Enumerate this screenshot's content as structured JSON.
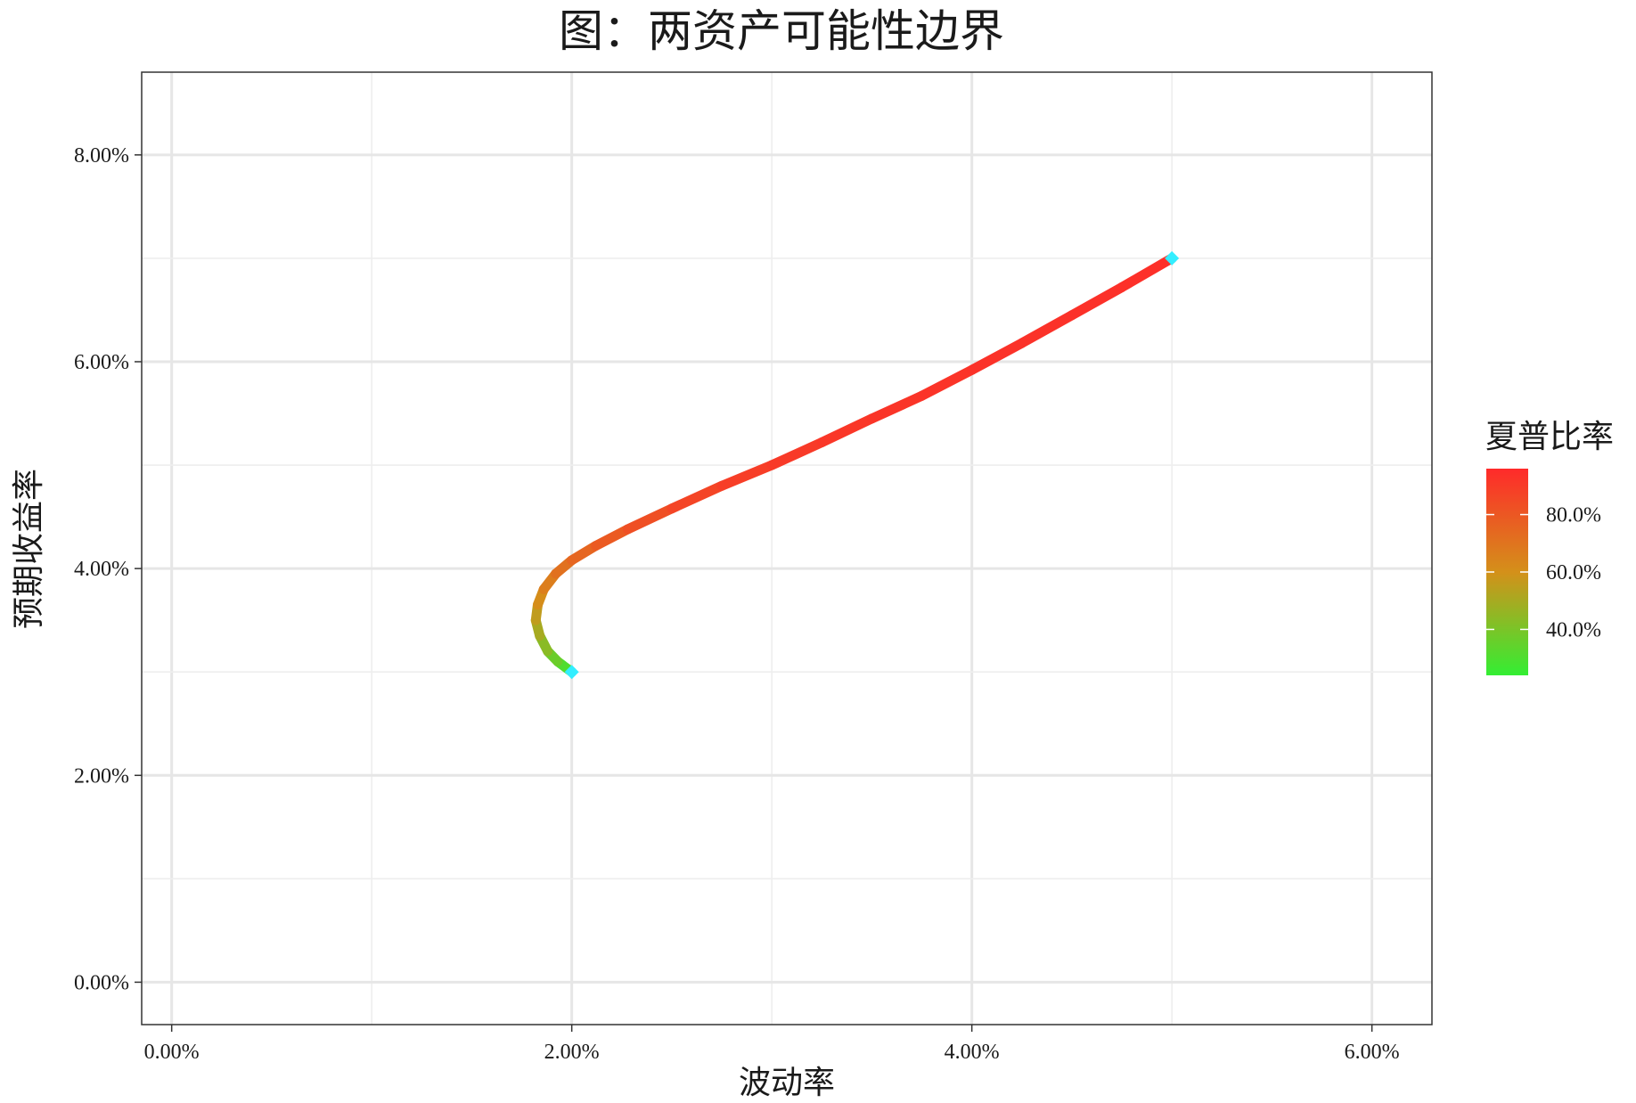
{
  "chart_data": {
    "type": "line",
    "title": "图：两资产可能性边界",
    "xlabel": "波动率",
    "ylabel": "预期收益率",
    "xlim": [
      -0.0015,
      0.063
    ],
    "ylim": [
      -0.0041,
      0.088
    ],
    "x_ticks": [
      0,
      0.02,
      0.04,
      0.06
    ],
    "x_tick_labels": [
      "0.00%",
      "2.00%",
      "4.00%",
      "6.00%"
    ],
    "y_ticks": [
      0,
      0.02,
      0.04,
      0.06,
      0.08
    ],
    "y_tick_labels": [
      "0.00%",
      "2.00%",
      "4.00%",
      "6.00%",
      "8.00%"
    ],
    "grid": true,
    "legend": {
      "title": "夏普比率",
      "position": "right",
      "colors": {
        "low": "#33ee33",
        "mid": "#d4901a",
        "high": "#ff2a2a"
      },
      "range": [
        0.24,
        0.96
      ],
      "ticks": [
        0.4,
        0.6,
        0.8
      ],
      "tick_labels": [
        "40.0%",
        "60.0%",
        "80.0%"
      ]
    },
    "series": [
      {
        "color_by": "sharpe",
        "points": [
          {
            "x": 0.02,
            "y": 0.03,
            "sharpe": 0.28
          },
          {
            "x": 0.0193,
            "y": 0.031,
            "sharpe": 0.33
          },
          {
            "x": 0.0188,
            "y": 0.032,
            "sharpe": 0.4
          },
          {
            "x": 0.0184,
            "y": 0.0335,
            "sharpe": 0.47
          },
          {
            "x": 0.0182,
            "y": 0.035,
            "sharpe": 0.53
          },
          {
            "x": 0.0183,
            "y": 0.0365,
            "sharpe": 0.58
          },
          {
            "x": 0.0186,
            "y": 0.038,
            "sharpe": 0.64
          },
          {
            "x": 0.0192,
            "y": 0.0395,
            "sharpe": 0.69
          },
          {
            "x": 0.02,
            "y": 0.0408,
            "sharpe": 0.73
          },
          {
            "x": 0.0212,
            "y": 0.0422,
            "sharpe": 0.77
          },
          {
            "x": 0.0228,
            "y": 0.0438,
            "sharpe": 0.81
          },
          {
            "x": 0.025,
            "y": 0.0458,
            "sharpe": 0.85
          },
          {
            "x": 0.0275,
            "y": 0.048,
            "sharpe": 0.88
          },
          {
            "x": 0.03,
            "y": 0.05,
            "sharpe": 0.9
          },
          {
            "x": 0.0325,
            "y": 0.0522,
            "sharpe": 0.91
          },
          {
            "x": 0.035,
            "y": 0.0545,
            "sharpe": 0.92
          },
          {
            "x": 0.0375,
            "y": 0.0567,
            "sharpe": 0.92
          },
          {
            "x": 0.04,
            "y": 0.0592,
            "sharpe": 0.93
          },
          {
            "x": 0.0425,
            "y": 0.0618,
            "sharpe": 0.93
          },
          {
            "x": 0.045,
            "y": 0.0645,
            "sharpe": 0.93
          },
          {
            "x": 0.0475,
            "y": 0.0672,
            "sharpe": 0.94
          },
          {
            "x": 0.05,
            "y": 0.07,
            "sharpe": 0.94
          }
        ]
      }
    ],
    "endpoints": {
      "color": "#33eeff",
      "points": [
        {
          "x": 0.02,
          "y": 0.03
        },
        {
          "x": 0.05,
          "y": 0.07
        }
      ]
    }
  }
}
